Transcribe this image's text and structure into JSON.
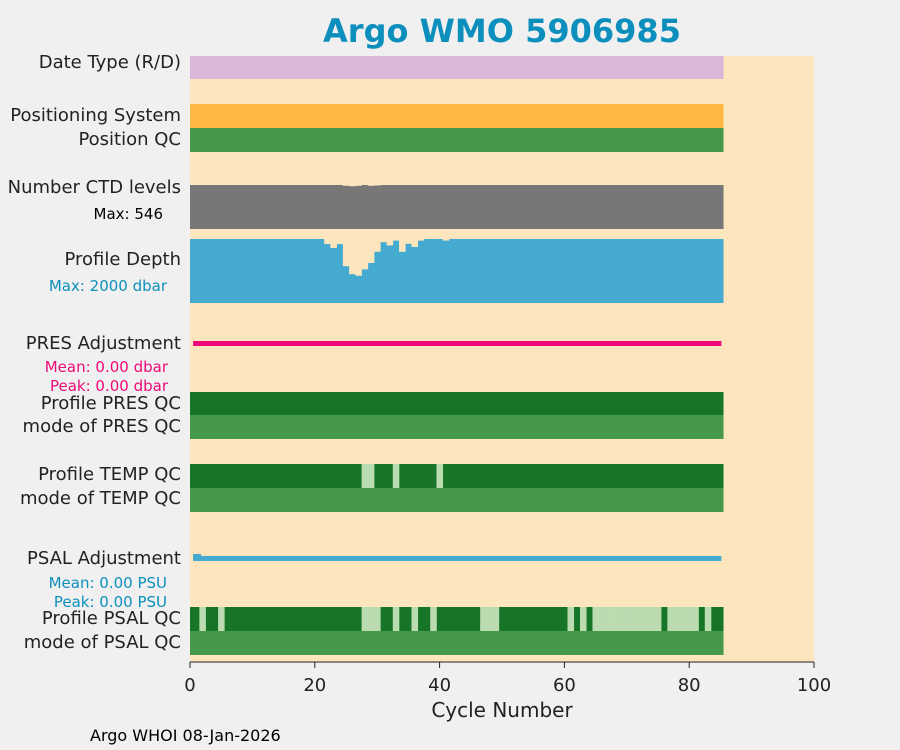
{
  "title": "Argo WMO 5906985",
  "footer": "Argo WHOI 08-Jan-2026",
  "colors": {
    "background": "#fde6bd",
    "date_type": "#d8b7d9",
    "positioning": "#fdb843",
    "qc_good": "#47994a",
    "qc_dark": "#177528",
    "qc_light": "#bbdbb1",
    "ctd_levels": "#777777",
    "profile_depth": "#44aad0",
    "pres_adjust": "#ec0a78",
    "psal_adjust": "#44aad0",
    "title": "#0d8fbd"
  },
  "rows": {
    "date_type": "Date Type (R/D)",
    "positioning_system": "Positioning System",
    "position_qc": "Position QC",
    "ctd_levels": "Number CTD levels",
    "ctd_max": "Max: 546",
    "profile_depth": "Profile Depth",
    "depth_max": "Max: 2000 dbar",
    "pres_adjustment": "PRES Adjustment",
    "pres_mean": "Mean: 0.00 dbar",
    "pres_peak": "Peak: 0.00 dbar",
    "profile_pres_qc": "Profile PRES QC",
    "mode_pres_qc": "mode of PRES QC",
    "profile_temp_qc": "Profile TEMP QC",
    "mode_temp_qc": "mode of TEMP QC",
    "psal_adjustment": "PSAL Adjustment",
    "psal_mean": "Mean: 0.00 PSU",
    "psal_peak": "Peak: 0.00 PSU",
    "profile_psal_qc": "Profile PSAL QC",
    "mode_psal_qc": "mode of PSAL QC"
  },
  "chart_data": {
    "type": "bar",
    "xlabel": "Cycle Number",
    "xlim": [
      0,
      100
    ],
    "xticks": [
      0,
      20,
      40,
      60,
      80,
      100
    ],
    "max_cycle": 85,
    "ctd_levels_max": 546,
    "profile_depth_max_dbar": 2000,
    "pres_adjustment": {
      "mean": 0.0,
      "peak": 0.0,
      "unit": "dbar"
    },
    "psal_adjustment": {
      "mean": 0.0,
      "peak": 0.0,
      "unit": "PSU"
    },
    "ctd_dips": [
      {
        "cycle": 25,
        "value": 536
      },
      {
        "cycle": 26,
        "value": 531
      },
      {
        "cycle": 27,
        "value": 536
      },
      {
        "cycle": 29,
        "value": 536
      },
      {
        "cycle": 30,
        "value": 540
      }
    ],
    "depth_dips": [
      {
        "cycle": 22,
        "value": 1840
      },
      {
        "cycle": 23,
        "value": 1720
      },
      {
        "cycle": 24,
        "value": 1840
      },
      {
        "cycle": 25,
        "value": 1150
      },
      {
        "cycle": 26,
        "value": 900
      },
      {
        "cycle": 27,
        "value": 850
      },
      {
        "cycle": 28,
        "value": 1050
      },
      {
        "cycle": 29,
        "value": 1250
      },
      {
        "cycle": 30,
        "value": 1600
      },
      {
        "cycle": 31,
        "value": 1900
      },
      {
        "cycle": 32,
        "value": 1800
      },
      {
        "cycle": 33,
        "value": 1950
      },
      {
        "cycle": 34,
        "value": 1600
      },
      {
        "cycle": 35,
        "value": 1850
      },
      {
        "cycle": 36,
        "value": 1750
      },
      {
        "cycle": 37,
        "value": 1950
      },
      {
        "cycle": 41,
        "value": 1950
      }
    ],
    "temp_qc_light_cycles": [
      28,
      29,
      33,
      40
    ],
    "psal_qc_light_cycles": [
      2,
      5,
      28,
      29,
      30,
      33,
      36,
      39,
      47,
      48,
      49,
      61,
      63,
      65,
      66,
      67,
      68,
      69,
      70,
      71,
      72,
      73,
      74,
      75,
      77,
      78,
      79,
      80,
      81,
      83
    ]
  }
}
